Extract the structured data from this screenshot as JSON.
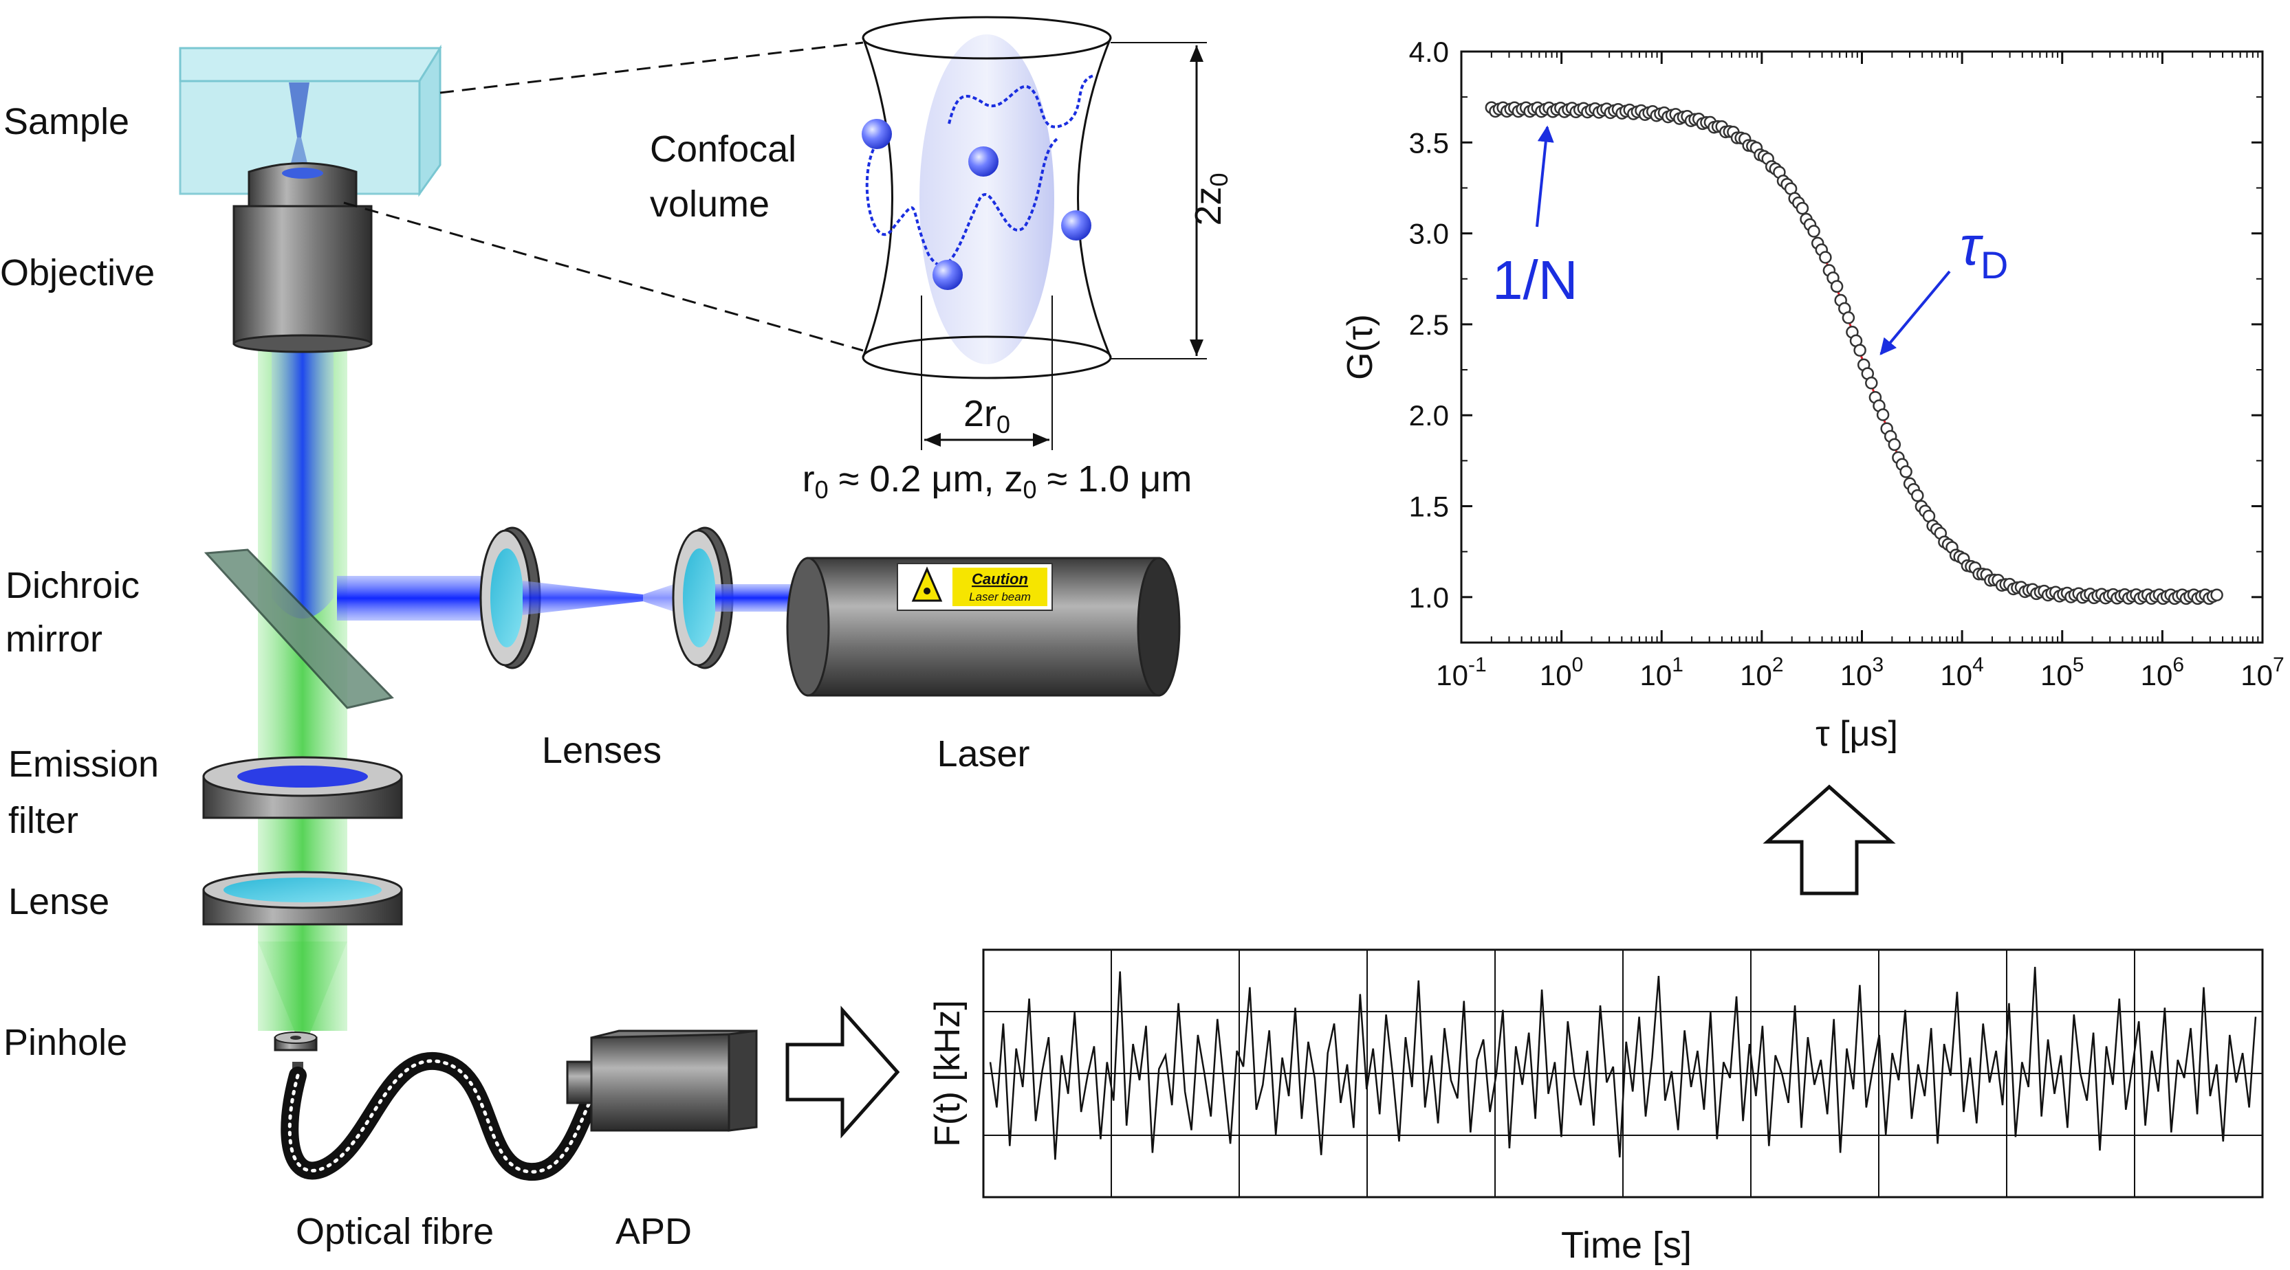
{
  "labels": {
    "sample": "Sample",
    "objective": "Objective",
    "dichroic_line1": "Dichroic",
    "dichroic_line2": "mirror",
    "emission_line1": "Emission",
    "emission_line2": "filter",
    "lense": "Lense",
    "pinhole": "Pinhole",
    "optical_fibre": "Optical fibre",
    "apd": "APD",
    "lenses": "Lenses",
    "laser": "Laser",
    "caution": "Caution",
    "laser_beam": "Laser beam",
    "confocal_line1": "Confocal",
    "confocal_line2": "volume",
    "two_z0_main": "2z",
    "two_z0_sub": "0",
    "two_r0_main": "2r",
    "two_r0_sub": "0",
    "dims_r": "r",
    "dims_sub0": "0",
    "dims_mid": " ≈ 0.2 μm, z",
    "dims_sub1": "0",
    "dims_end": " ≈ 1.0 μm"
  },
  "trace": {
    "ylabel": "F(t) [kHz]",
    "xlabel": "Time [s]",
    "values": [
      0.55,
      0.35,
      0.72,
      0.18,
      0.61,
      0.44,
      0.83,
      0.29,
      0.51,
      0.66,
      0.12,
      0.58,
      0.41,
      0.77,
      0.33,
      0.49,
      0.62,
      0.21,
      0.55,
      0.38,
      0.95,
      0.27,
      0.63,
      0.47,
      0.71,
      0.15,
      0.52,
      0.58,
      0.36,
      0.81,
      0.42,
      0.25,
      0.67,
      0.5,
      0.31,
      0.74,
      0.46,
      0.19,
      0.6,
      0.53,
      0.88,
      0.34,
      0.45,
      0.69,
      0.23,
      0.57,
      0.4,
      0.79,
      0.3,
      0.64,
      0.48,
      0.14,
      0.59,
      0.72,
      0.37,
      0.54,
      0.26,
      0.85,
      0.43,
      0.61,
      0.32,
      0.76,
      0.5,
      0.2,
      0.66,
      0.44,
      0.91,
      0.35,
      0.58,
      0.28,
      0.7,
      0.47,
      0.39,
      0.82,
      0.24,
      0.56,
      0.65,
      0.33,
      0.5,
      0.78,
      0.17,
      0.62,
      0.45,
      0.68,
      0.3,
      0.87,
      0.41,
      0.55,
      0.22,
      0.73,
      0.49,
      0.36,
      0.6,
      0.27,
      0.8,
      0.46,
      0.53,
      0.13,
      0.64,
      0.42,
      0.75,
      0.31,
      0.57,
      0.93,
      0.38,
      0.51,
      0.25,
      0.69,
      0.44,
      0.6,
      0.34,
      0.77,
      0.21,
      0.55,
      0.48,
      0.84,
      0.29,
      0.63,
      0.4,
      0.71,
      0.18,
      0.58,
      0.5,
      0.37,
      0.8,
      0.26,
      0.66,
      0.45,
      0.56,
      0.32,
      0.74,
      0.15,
      0.61,
      0.43,
      0.89,
      0.35,
      0.52,
      0.67,
      0.23,
      0.59,
      0.47,
      0.78,
      0.3,
      0.54,
      0.4,
      0.7,
      0.19,
      0.63,
      0.49,
      0.86,
      0.33,
      0.57,
      0.28,
      0.72,
      0.46,
      0.6,
      0.36,
      0.81,
      0.22,
      0.55,
      0.44,
      0.97,
      0.31,
      0.65,
      0.41,
      0.58,
      0.26,
      0.76,
      0.5,
      0.38,
      0.68,
      0.16,
      0.62,
      0.45,
      0.83,
      0.34,
      0.53,
      0.73,
      0.27,
      0.6,
      0.42,
      0.79,
      0.24,
      0.56,
      0.48,
      0.7,
      0.32,
      0.88,
      0.4,
      0.54,
      0.2,
      0.67,
      0.46,
      0.59,
      0.35,
      0.75
    ]
  },
  "chart_data": {
    "type": "scatter",
    "xlabel": "τ [μs]",
    "ylabel": "G(τ)",
    "xscale": "log",
    "xlim": [
      0.1,
      10000000
    ],
    "ylim": [
      0.75,
      4.0
    ],
    "x_tick_labels": [
      {
        "base": "10",
        "exp": "-1"
      },
      {
        "base": "10",
        "exp": "0"
      },
      {
        "base": "10",
        "exp": "1"
      },
      {
        "base": "10",
        "exp": "2"
      },
      {
        "base": "10",
        "exp": "3"
      },
      {
        "base": "10",
        "exp": "4"
      },
      {
        "base": "10",
        "exp": "5"
      },
      {
        "base": "10",
        "exp": "6"
      },
      {
        "base": "10",
        "exp": "7"
      }
    ],
    "y_ticks": [
      "1.0",
      "1.5",
      "2.0",
      "2.5",
      "3.0",
      "3.5",
      "4.0"
    ],
    "fit_params": {
      "N_inverse": 2.68,
      "offset": 1.0,
      "tau_D_us": 1000,
      "s": 5
    },
    "tau_range_us": [
      0.2,
      3500000
    ],
    "annotations": {
      "inv_n": "1/N",
      "tau_main": "τ",
      "tau_sub": "D"
    },
    "points_color": "#ffffff",
    "points_stroke": "#333333",
    "fit_color": "#e8202a"
  },
  "colors": {
    "green_beam": "#7be07b",
    "blue_beam": "#1e3cff",
    "annotation_blue": "#1a2ee0",
    "caution_yellow": "#f6e500"
  }
}
